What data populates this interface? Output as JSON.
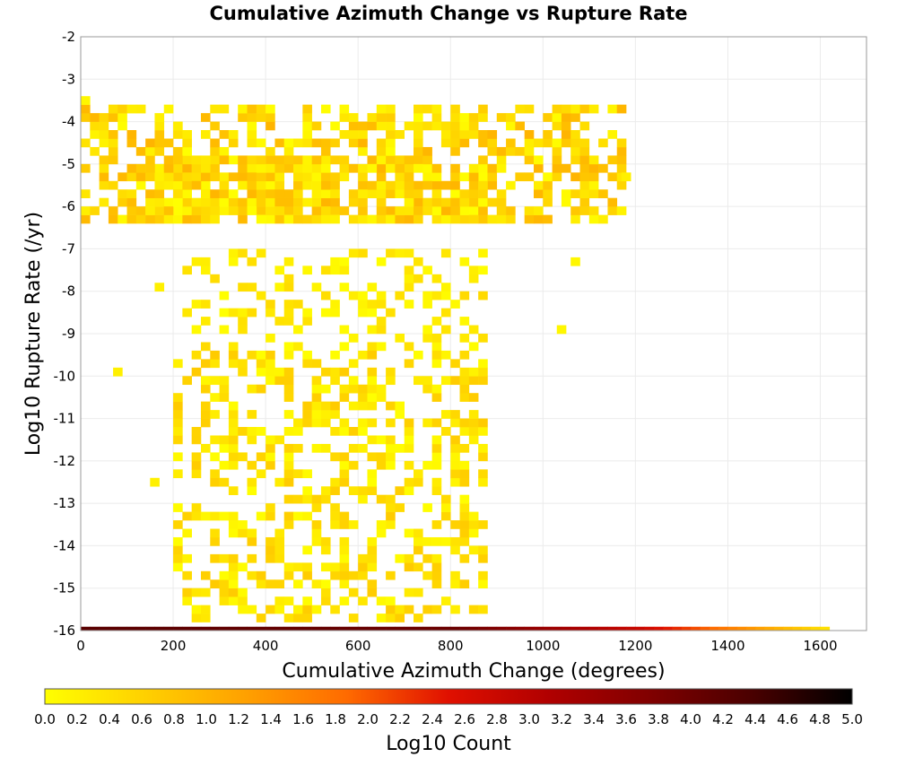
{
  "chart_data": {
    "type": "heatmap",
    "title": "Cumulative Azimuth Change vs Rupture Rate",
    "xlabel": "Cumulative Azimuth Change (degrees)",
    "ylabel": "Log10 Rupture Rate (/yr)",
    "xlim": [
      0,
      1700
    ],
    "ylim": [
      -16,
      -2
    ],
    "x_ticks": [
      0,
      200,
      400,
      600,
      800,
      1000,
      1200,
      1400,
      1600
    ],
    "y_ticks": [
      -2,
      -3,
      -4,
      -5,
      -6,
      -7,
      -8,
      -9,
      -10,
      -11,
      -12,
      -13,
      -14,
      -15,
      -16
    ],
    "grid": true,
    "colorbar": {
      "label": "Log10 Count",
      "range": [
        0.0,
        5.0
      ],
      "ticks": [
        "0.0",
        "0.2",
        "0.4",
        "0.6",
        "0.8",
        "1.0",
        "1.2",
        "1.4",
        "1.6",
        "1.8",
        "2.0",
        "2.2",
        "2.4",
        "2.6",
        "2.8",
        "3.0",
        "3.2",
        "3.4",
        "3.6",
        "3.8",
        "4.0",
        "4.2",
        "4.4",
        "4.6",
        "4.8",
        "5.0"
      ],
      "colors": [
        "#ffff00",
        "#ffd000",
        "#ffa000",
        "#ff6a00",
        "#e01000",
        "#b00000",
        "#800000",
        "#4a0000",
        "#000000"
      ]
    },
    "bin_width_x": 20,
    "bin_height_y": 0.2,
    "bottom_row": {
      "y": -16,
      "x_start": 0,
      "x_end": 1620,
      "description_values": [
        {
          "x": 0,
          "log10_count": 4.2
        },
        {
          "x": 800,
          "log10_count": 4.0
        },
        {
          "x": 1000,
          "log10_count": 3.4
        },
        {
          "x": 1200,
          "log10_count": 2.8
        },
        {
          "x": 1300,
          "log10_count": 2.2
        },
        {
          "x": 1400,
          "log10_count": 1.6
        },
        {
          "x": 1500,
          "log10_count": 1.0
        },
        {
          "x": 1620,
          "log10_count": 0.3
        }
      ]
    },
    "regions": [
      {
        "x_range": [
          0,
          1180
        ],
        "y_range": [
          -6.4,
          -3.6
        ],
        "density": 0.55,
        "max_log10_count": 1.0
      },
      {
        "x_range": [
          140,
          560
        ],
        "y_range": [
          -6.4,
          -4.8
        ],
        "density": 0.85,
        "max_log10_count": 1.0
      },
      {
        "x_range": [
          600,
          880
        ],
        "y_range": [
          -6.4,
          -5.0
        ],
        "density": 0.8,
        "max_log10_count": 0.9
      },
      {
        "x_range": [
          220,
          880
        ],
        "y_range": [
          -9.4,
          -7.0
        ],
        "density": 0.3,
        "max_log10_count": 0.5
      },
      {
        "x_range": [
          200,
          880
        ],
        "y_range": [
          -15.8,
          -9.4
        ],
        "density": 0.42,
        "max_log10_count": 0.7
      }
    ],
    "isolated_bins": [
      {
        "x": 0,
        "y": -3.6,
        "log10_count": 0.1
      },
      {
        "x": 1030,
        "y": -9.0,
        "log10_count": 0.1
      },
      {
        "x": 1060,
        "y": -7.4,
        "log10_count": 0.1
      },
      {
        "x": 160,
        "y": -8.0,
        "log10_count": 0.2
      },
      {
        "x": 70,
        "y": -10.0,
        "log10_count": 0.2
      },
      {
        "x": 150,
        "y": -12.6,
        "log10_count": 0.2
      },
      {
        "x": 1130,
        "y": -5.0,
        "log10_count": 0.1
      },
      {
        "x": 1170,
        "y": -5.4,
        "log10_count": 0.2
      }
    ]
  }
}
